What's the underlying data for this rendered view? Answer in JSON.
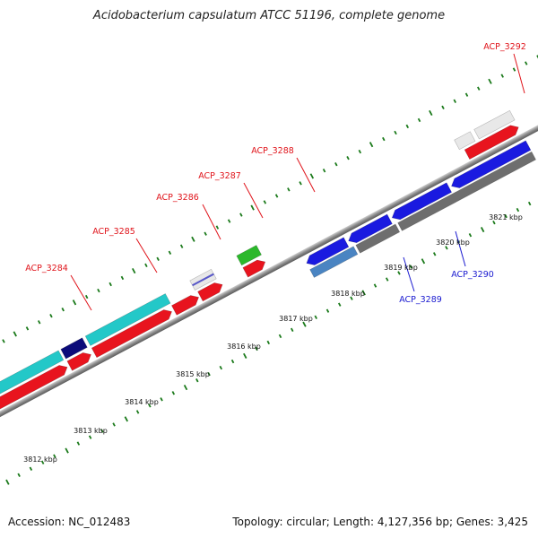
{
  "title": "Acidobacterium capsulatum ATCC 51196, complete genome",
  "footer": {
    "accession": "Accession: NC_012483",
    "stats": "Topology: circular; Length: 4,127,356 bp; Genes: 3,425"
  },
  "colors": {
    "forward_label": "#e0141b",
    "reverse_label": "#1a1ad0",
    "tick": "#1b7a1b",
    "backbone": "#8c8c8c"
  },
  "gene_labels": [
    {
      "name": "ACP_3284",
      "strand": "forward"
    },
    {
      "name": "ACP_3285",
      "strand": "forward"
    },
    {
      "name": "ACP_3286",
      "strand": "forward"
    },
    {
      "name": "ACP_3287",
      "strand": "forward"
    },
    {
      "name": "ACP_3288",
      "strand": "forward"
    },
    {
      "name": "ACP_3289",
      "strand": "reverse"
    },
    {
      "name": "ACP_3290",
      "strand": "reverse"
    },
    {
      "name": "ACP_3292",
      "strand": "forward"
    }
  ],
  "scale": {
    "unit": "kbp",
    "labels": [
      "3812 kbp",
      "3813 kbp",
      "3814 kbp",
      "3815 kbp",
      "3816 kbp",
      "3817 kbp",
      "3818 kbp",
      "3819 kbp",
      "3820 kbp",
      "3821 kbp"
    ]
  },
  "tracks": {
    "cog_forward": [
      "#23c8c8",
      "#0c0c7a",
      "#23c8c8",
      "#e8e8e8",
      "#2bb82b",
      "#e8e8e8",
      "#e8e8e8"
    ],
    "cog_forward_stripe": "#5858c8",
    "genes_forward_color": "#e8141e",
    "genes_reverse_color": "#1a1ae0",
    "cog_reverse": [
      "#4a84c2",
      "#6e6e6e",
      "#6e6e6e"
    ]
  }
}
